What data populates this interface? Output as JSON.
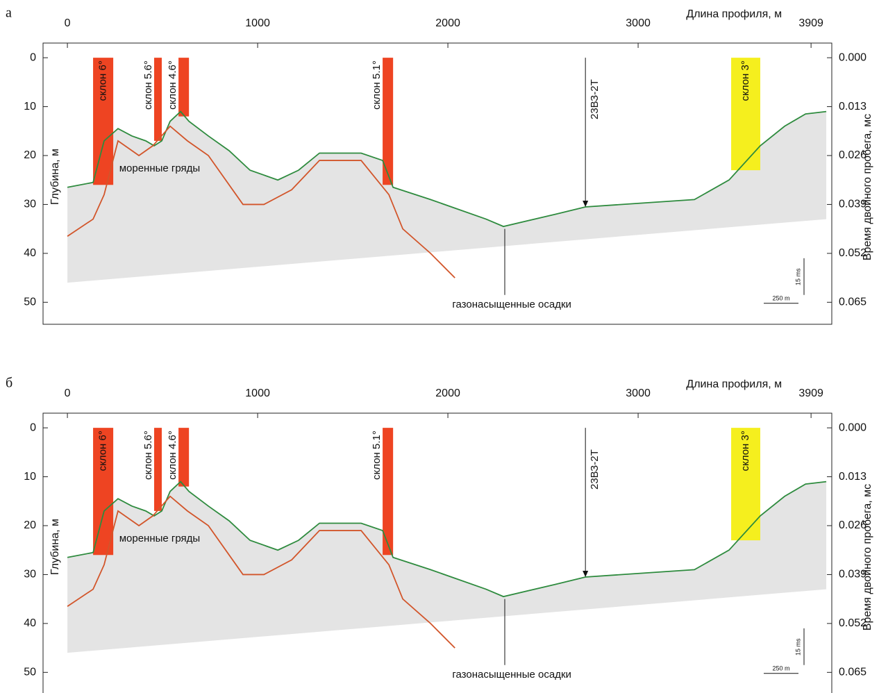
{
  "chart_data": [
    {
      "type": "profile",
      "panel_label": "а",
      "x_label": "Длина профиля, м",
      "y_label": "Глубина, м",
      "y2_label": "Время двойного пробега, мс",
      "xlim": [
        -128,
        4018
      ],
      "xticks": [
        0,
        1000,
        2000,
        3000,
        3909
      ],
      "ylim": [
        -3,
        54.5
      ],
      "yticks": [
        0,
        10,
        20,
        30,
        40,
        50
      ],
      "y2lim": [
        -0.0039,
        0.07085
      ],
      "y2ticks": [
        {
          "value": 0,
          "label": "0.000"
        },
        {
          "value": 0.013,
          "label": "0.013"
        },
        {
          "value": 0.026,
          "label": "0.026"
        },
        {
          "value": 0.039,
          "label": "0.039"
        },
        {
          "value": 0.052,
          "label": "0.052"
        },
        {
          "value": 0.065,
          "label": "0.065"
        }
      ],
      "series": [
        {
          "color": "#2e8b3e",
          "x": [
            0,
            135,
            193,
            266,
            339,
            412,
            456,
            496,
            540,
            595,
            639,
            741,
            850,
            960,
            1106,
            1215,
            1325,
            1544,
            1657,
            1712,
            1909,
            2201,
            2292,
            2566,
            2723,
            3296,
            3478,
            3642,
            3770,
            3880,
            3989
          ],
          "values": [
            26.5,
            25.5,
            17,
            14.5,
            16,
            17,
            18,
            17,
            13,
            11,
            13,
            16,
            19,
            23,
            25,
            23,
            19.5,
            19.5,
            21,
            26.5,
            29,
            33,
            34.5,
            32,
            30.5,
            29,
            25,
            18,
            14,
            11.5,
            11
          ]
        },
        {
          "color": "#d2552a",
          "x": [
            0,
            135,
            193,
            266,
            376,
            449,
            540,
            631,
            741,
            923,
            1033,
            1179,
            1325,
            1544,
            1690,
            1763,
            1909,
            2037
          ],
          "values": [
            36.5,
            33,
            28,
            17,
            20,
            18,
            14,
            17,
            20,
            30,
            30,
            27,
            21,
            21,
            28,
            35,
            40,
            45
          ]
        }
      ],
      "slopes": [
        {
          "label": "склон 6°",
          "color": "#ee4422",
          "x": [
            135,
            241
          ],
          "depth": 26
        },
        {
          "label": "склон 5.6°",
          "color": "#ee4422",
          "x": [
            456,
            496
          ],
          "depth": 17
        },
        {
          "label": "склон 4.6°",
          "color": "#ee4422",
          "x": [
            584,
            639
          ],
          "depth": 12
        },
        {
          "label": "склон 5.1°",
          "color": "#ee4422",
          "x": [
            1657,
            1712
          ],
          "depth": 26
        },
        {
          "label": "склон 3°",
          "color": "#f5ef1e",
          "x": [
            3489,
            3642
          ],
          "depth": 23
        }
      ],
      "annotations": [
        {
          "text": "23ВЗ-2Т",
          "x": 2723,
          "y": 30.5
        },
        {
          "text": "моренные гряды",
          "x": 485,
          "y": 22.7
        },
        {
          "text": "газонасыщенные осадки",
          "x": 2336,
          "y": 50.5
        }
      ],
      "scale_labels": [
        "250 m",
        "15 ms"
      ]
    },
    {
      "type": "profile",
      "panel_label": "б",
      "x_label": "Длина профиля, м",
      "y_label": "Глубина, м",
      "y2_label": "Время двойного пробега, мс",
      "xlim": [
        -128,
        4018
      ],
      "xticks": [
        0,
        1000,
        2000,
        3000,
        3909
      ],
      "ylim": [
        -3,
        54.5
      ],
      "yticks": [
        0,
        10,
        20,
        30,
        40,
        50
      ],
      "y2lim": [
        -0.0039,
        0.07085
      ],
      "y2ticks": [
        {
          "value": 0,
          "label": "0.000"
        },
        {
          "value": 0.013,
          "label": "0.013"
        },
        {
          "value": 0.026,
          "label": "0.026"
        },
        {
          "value": 0.039,
          "label": "0.039"
        },
        {
          "value": 0.052,
          "label": "0.052"
        },
        {
          "value": 0.065,
          "label": "0.065"
        }
      ],
      "series": [
        {
          "color": "#2e8b3e",
          "x": [
            0,
            135,
            193,
            266,
            339,
            412,
            456,
            496,
            540,
            595,
            639,
            741,
            850,
            960,
            1106,
            1215,
            1325,
            1544,
            1657,
            1712,
            1909,
            2201,
            2292,
            2566,
            2723,
            3296,
            3478,
            3642,
            3770,
            3880,
            3989
          ],
          "values": [
            26.5,
            25.5,
            17,
            14.5,
            16,
            17,
            18,
            17,
            13,
            11,
            13,
            16,
            19,
            23,
            25,
            23,
            19.5,
            19.5,
            21,
            26.5,
            29,
            33,
            34.5,
            32,
            30.5,
            29,
            25,
            18,
            14,
            11.5,
            11
          ]
        },
        {
          "color": "#d2552a",
          "x": [
            0,
            135,
            193,
            266,
            376,
            449,
            540,
            631,
            741,
            923,
            1033,
            1179,
            1325,
            1544,
            1690,
            1763,
            1909,
            2037
          ],
          "values": [
            36.5,
            33,
            28,
            17,
            20,
            18,
            14,
            17,
            20,
            30,
            30,
            27,
            21,
            21,
            28,
            35,
            40,
            45
          ]
        }
      ],
      "slopes": [
        {
          "label": "склон 6°",
          "color": "#ee4422",
          "x": [
            135,
            241
          ],
          "depth": 26
        },
        {
          "label": "склон 5.6°",
          "color": "#ee4422",
          "x": [
            456,
            496
          ],
          "depth": 17
        },
        {
          "label": "склон 4.6°",
          "color": "#ee4422",
          "x": [
            584,
            639
          ],
          "depth": 12
        },
        {
          "label": "склон 5.1°",
          "color": "#ee4422",
          "x": [
            1657,
            1712
          ],
          "depth": 26
        },
        {
          "label": "склон 3°",
          "color": "#f5ef1e",
          "x": [
            3489,
            3642
          ],
          "depth": 23
        }
      ],
      "annotations": [
        {
          "text": "23ВЗ-2Т",
          "x": 2723,
          "y": 30.5
        },
        {
          "text": "моренные гряды",
          "x": 485,
          "y": 22.7
        },
        {
          "text": "газонасыщенные осадки",
          "x": 2336,
          "y": 50.5
        }
      ],
      "scale_labels": [
        "250 m",
        "15 ms"
      ]
    }
  ]
}
